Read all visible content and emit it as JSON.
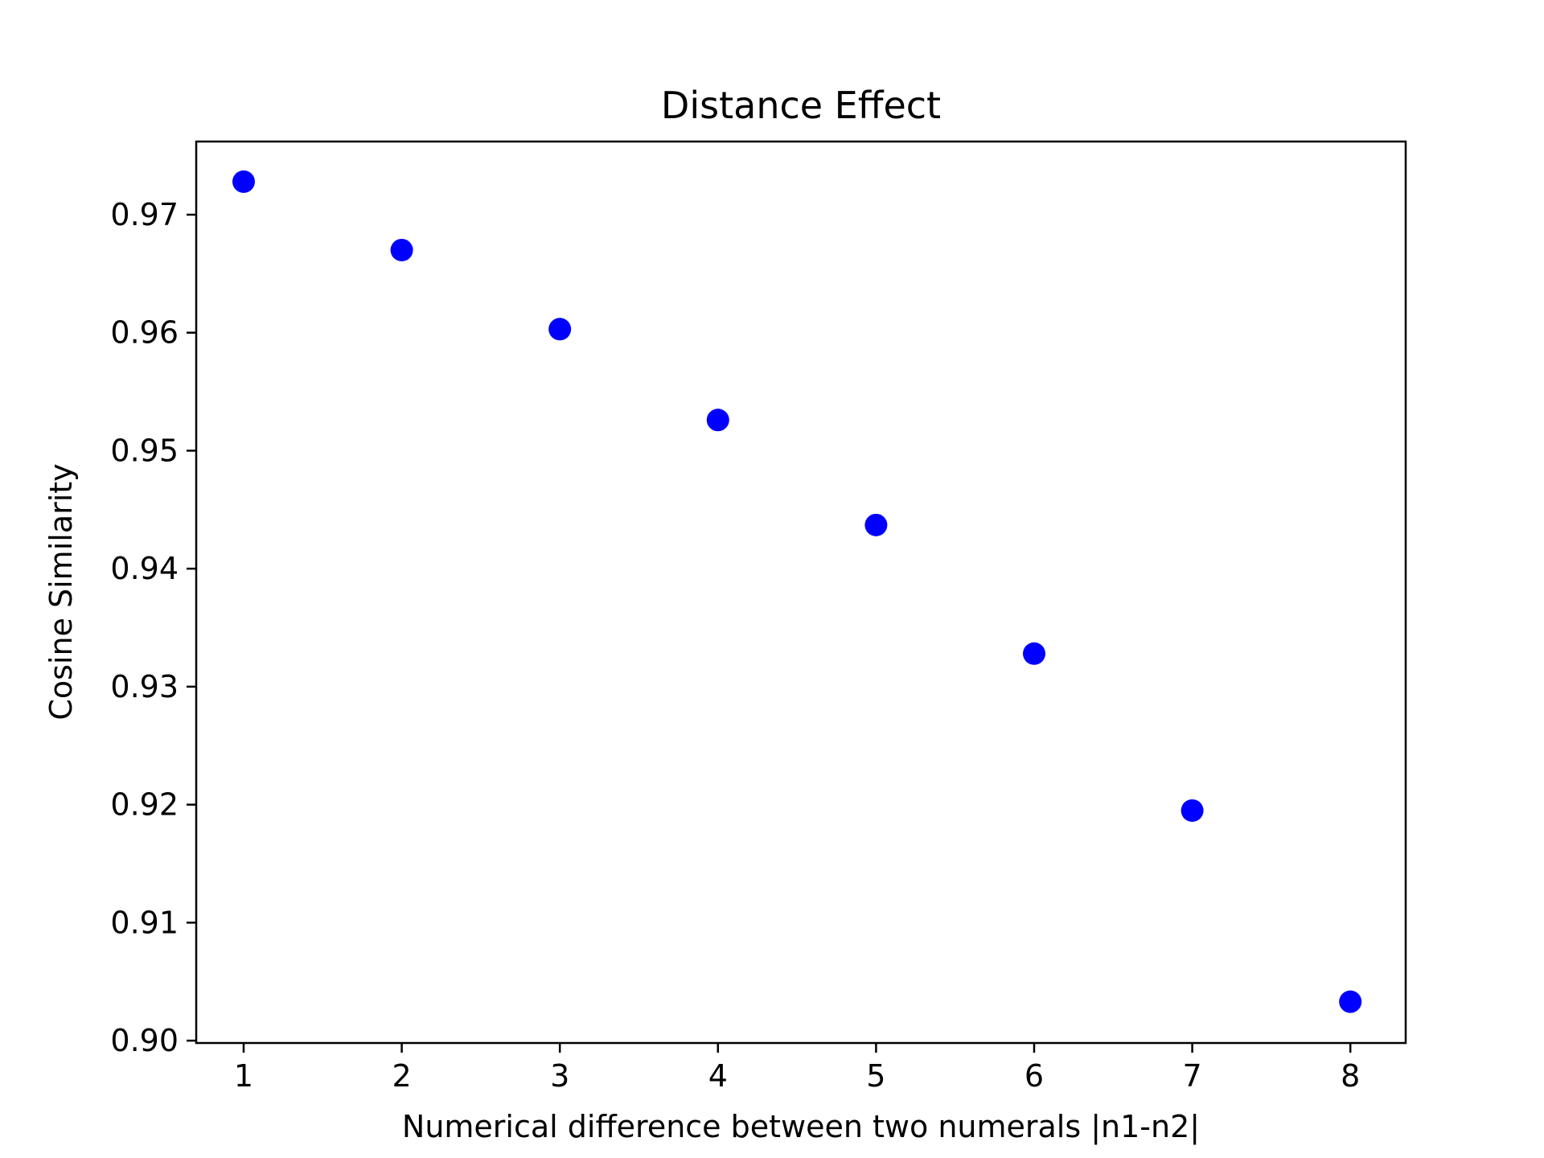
{
  "chart_data": {
    "type": "scatter",
    "title": "Distance Effect",
    "xlabel": "Numerical difference between two numerals |n1-n2|",
    "ylabel": "Cosine Similarity",
    "xlim": [
      0.7,
      8.35
    ],
    "ylim": [
      0.8998,
      0.9762
    ],
    "xticks": [
      "1",
      "2",
      "3",
      "4",
      "5",
      "6",
      "7",
      "8"
    ],
    "yticks": [
      "0.90",
      "0.91",
      "0.92",
      "0.93",
      "0.94",
      "0.95",
      "0.96",
      "0.97"
    ],
    "grid": false,
    "legend": "none",
    "marker_color": "#0000ff",
    "series": [
      {
        "x": [
          1,
          2,
          3,
          4,
          5,
          6,
          7,
          8
        ],
        "y": [
          0.9728,
          0.967,
          0.9603,
          0.9526,
          0.9437,
          0.9328,
          0.9195,
          0.9033
        ]
      }
    ]
  }
}
